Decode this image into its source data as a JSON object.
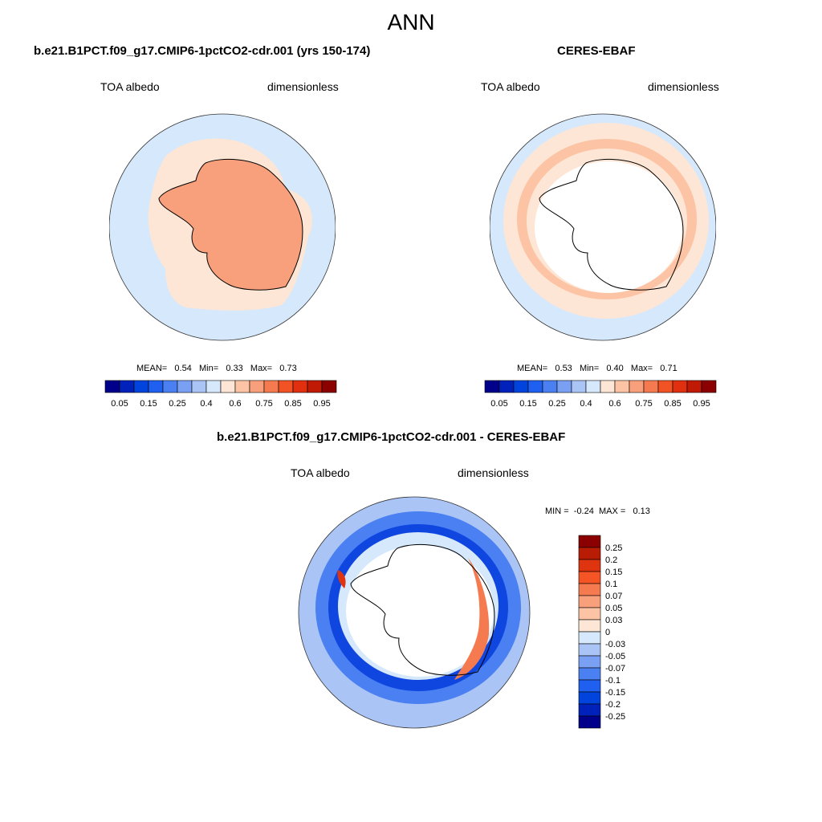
{
  "figure": {
    "title": "ANN"
  },
  "panels": [
    {
      "title": "b.e21.B1PCT.f09_g17.CMIP6-1pctCO2-cdr.001 (yrs 150-174)",
      "variable": "TOA albedo",
      "units": "dimensionless",
      "stats": {
        "mean_label": "MEAN=",
        "mean": "0.54",
        "min_label": "Min=",
        "min": "0.33",
        "max_label": "Max=",
        "max": "0.73"
      }
    },
    {
      "title": "CERES-EBAF",
      "variable": "TOA albedo",
      "units": "dimensionless",
      "stats": {
        "mean_label": "MEAN=",
        "mean": "0.53",
        "min_label": "Min=",
        "min": "0.40",
        "max_label": "Max=",
        "max": "0.71"
      }
    },
    {
      "title": "b.e21.B1PCT.f09_g17.CMIP6-1pctCO2-cdr.001 - CERES-EBAF",
      "variable": "TOA albedo",
      "units": "dimensionless",
      "stats": {
        "min_label": "MIN =",
        "min": "-0.24",
        "max_label": "MAX =",
        "max": "0.13"
      }
    }
  ],
  "colorbar_abs": {
    "colors": [
      "#00008b",
      "#0022bb",
      "#0044dd",
      "#2060f0",
      "#4a80f2",
      "#7aa0f4",
      "#aac4f6",
      "#d6e8fb",
      "#fde6d5",
      "#fcc4a4",
      "#f8a07c",
      "#f57a50",
      "#f25325",
      "#e03010",
      "#c01a05",
      "#8b0000"
    ],
    "labels": [
      "0.05",
      "0.15",
      "0.25",
      "0.4",
      "0.6",
      "0.75",
      "0.85",
      "0.95"
    ]
  },
  "colorbar_diff": {
    "colors": [
      "#8b0000",
      "#b81c05",
      "#de3410",
      "#f55424",
      "#f57a50",
      "#f8a07c",
      "#fcc4a4",
      "#fde6d5",
      "#d6e8fb",
      "#aac4f6",
      "#7aa0f4",
      "#4a80f2",
      "#2060f0",
      "#0044dd",
      "#0022bb",
      "#00008b"
    ],
    "labels": [
      "0.25",
      "0.2",
      "0.15",
      "0.1",
      "0.07",
      "0.05",
      "0.03",
      "0",
      "-0.03",
      "-0.05",
      "-0.07",
      "-0.1",
      "-0.15",
      "-0.2",
      "-0.25"
    ]
  },
  "chart_data": [
    {
      "type": "heatmap",
      "title": "b.e21.B1PCT.f09_g17.CMIP6-1pctCO2-cdr.001 (yrs 150-174)",
      "projection": "south polar stereographic",
      "variable": "TOA albedo",
      "units": "dimensionless",
      "mean": 0.54,
      "min": 0.33,
      "max": 0.73,
      "contour_levels": [
        0.05,
        0.1,
        0.15,
        0.2,
        0.25,
        0.3,
        0.4,
        0.5,
        0.6,
        0.65,
        0.75,
        0.8,
        0.85,
        0.9,
        0.95
      ]
    },
    {
      "type": "heatmap",
      "title": "CERES-EBAF",
      "projection": "south polar stereographic",
      "variable": "TOA albedo",
      "units": "dimensionless",
      "mean": 0.53,
      "min": 0.4,
      "max": 0.71,
      "contour_levels": [
        0.05,
        0.1,
        0.15,
        0.2,
        0.25,
        0.3,
        0.4,
        0.5,
        0.6,
        0.65,
        0.75,
        0.8,
        0.85,
        0.9,
        0.95
      ]
    },
    {
      "type": "heatmap",
      "title": "b.e21.B1PCT.f09_g17.CMIP6-1pctCO2-cdr.001 - CERES-EBAF",
      "projection": "south polar stereographic",
      "variable": "TOA albedo",
      "units": "dimensionless",
      "min": -0.24,
      "max": 0.13,
      "contour_levels": [
        -0.25,
        -0.2,
        -0.15,
        -0.1,
        -0.07,
        -0.05,
        -0.03,
        0,
        0.03,
        0.05,
        0.07,
        0.1,
        0.15,
        0.2,
        0.25
      ]
    }
  ]
}
